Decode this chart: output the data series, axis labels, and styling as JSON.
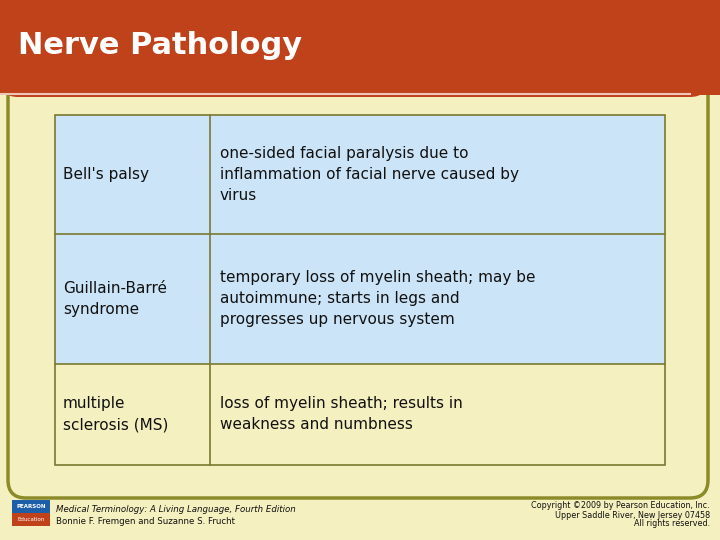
{
  "title": "Nerve Pathology",
  "title_color": "#ffffff",
  "title_bg_color": "#c0421a",
  "background_color": "#f5f0c0",
  "scroll_border_color": "#8b8b2a",
  "table_rows": [
    {
      "term": "Bell's palsy",
      "definition": "one-sided facial paralysis due to\ninflammation of facial nerve caused by\nvirus",
      "term_bg": "#cce4f7",
      "def_bg": "#cce4f7"
    },
    {
      "term": "Guillain-Barré\nsyndrome",
      "definition": "temporary loss of myelin sheath; may be\nautoimmune; starts in legs and\nprogresses up nervous system",
      "term_bg": "#cce4f7",
      "def_bg": "#cce4f7"
    },
    {
      "term": "multiple\nsclerosis (MS)",
      "definition": "loss of myelin sheath; results in\nweakness and numbness",
      "term_bg": "#f5f0c0",
      "def_bg": "#f5f0c0"
    }
  ],
  "table_border_color": "#7a7a30",
  "text_color": "#111111",
  "title_fontsize": 22,
  "table_fontsize": 11,
  "footer_left_line1": "Medical Terminology: A Living Language, Fourth Edition",
  "footer_left_line2": "Bonnie F. Fremgen and Suzanne S. Frucht",
  "footer_right_line1": "Copyright ©2009 by Pearson Education, Inc.",
  "footer_right_line2": "Upper Saddle River, New Jersey 07458",
  "footer_right_line3": "All rights reserved.",
  "footer_color": "#111111",
  "pearson_blue": "#1a5fa8",
  "pearson_red": "#c0421a"
}
